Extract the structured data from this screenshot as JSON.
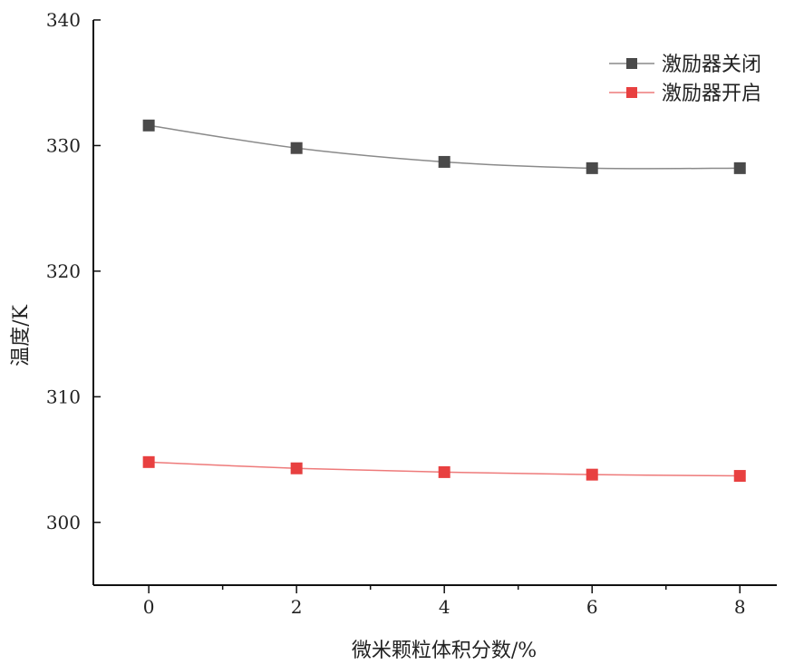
{
  "chart_data": {
    "type": "line",
    "title": "",
    "xlabel": "微米颗粒体积分数/%",
    "ylabel": "温度/K",
    "xlim": [
      -0.75,
      8.5
    ],
    "ylim": [
      295,
      340
    ],
    "xticks": [
      0,
      2,
      4,
      6,
      8
    ],
    "xminor": [
      1,
      3,
      5,
      7
    ],
    "yticks": [
      300,
      310,
      320,
      330,
      340
    ],
    "grid": false,
    "legend_position": "top-right",
    "x": [
      0,
      2,
      4,
      6,
      8
    ],
    "series": [
      {
        "name": "激励器关闭",
        "color": "#4a4a4a",
        "line_color": "#8a8a8a",
        "values": [
          331.6,
          329.8,
          328.7,
          328.2,
          328.2
        ]
      },
      {
        "name": "激励器开启",
        "color": "#e84040",
        "line_color": "#ee7a7a",
        "values": [
          304.8,
          304.3,
          304.0,
          303.8,
          303.7
        ]
      }
    ]
  }
}
